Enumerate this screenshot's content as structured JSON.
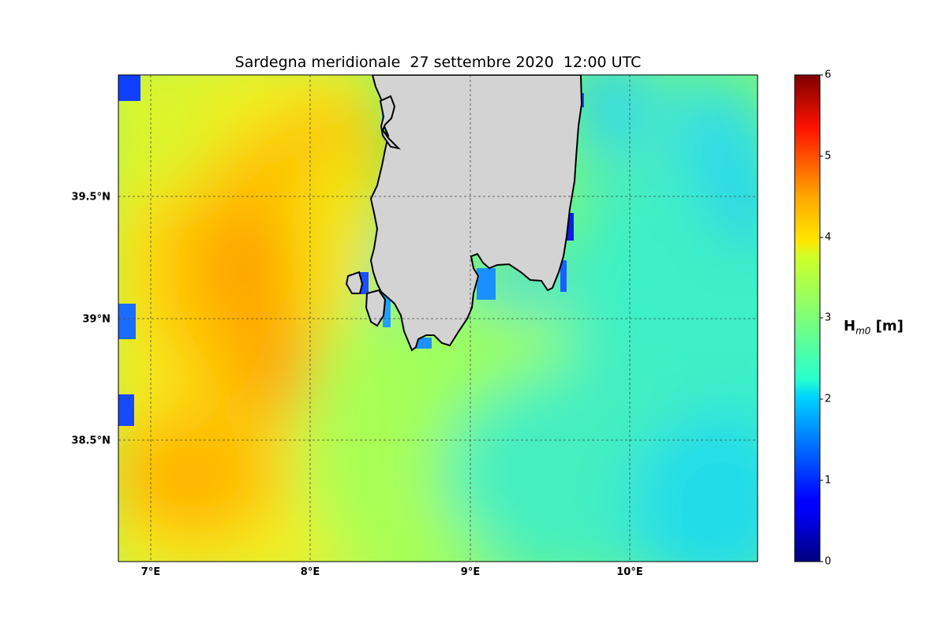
{
  "title": "Sardegna meridionale  27 settembre 2020  12:00 UTC",
  "map": {
    "x_ticks": [
      {
        "lon": 7,
        "label": "7°E"
      },
      {
        "lon": 8,
        "label": "8°E"
      },
      {
        "lon": 9,
        "label": "9°E"
      },
      {
        "lon": 10,
        "label": "10°E"
      }
    ],
    "y_ticks": [
      {
        "lat": 39.5,
        "label": "39.5°N"
      },
      {
        "lat": 39,
        "label": "39°N"
      },
      {
        "lat": 38.5,
        "label": "38.5°N"
      }
    ],
    "lon_range": [
      6.8,
      10.8
    ],
    "lat_range": [
      38.0,
      40.0
    ],
    "grid": true,
    "land_color": "#d3d3d3",
    "region_label": "Sardegna meridionale"
  },
  "colorbar": {
    "label_main": "H",
    "label_sub": "m0",
    "label_unit": " [m]",
    "ticks": [
      "0",
      "1",
      "2",
      "3",
      "4",
      "5",
      "6"
    ],
    "min": 0,
    "max": 6,
    "colormap": "jet"
  },
  "chart_data": {
    "type": "heatmap",
    "title": "Sardegna meridionale  27 settembre 2020  12:00 UTC",
    "variable": "Hm0 [m]",
    "xlim": [
      6.8,
      10.8
    ],
    "ylim": [
      38.0,
      40.0
    ],
    "vmin": 0,
    "vmax": 6,
    "field_samples": [
      {
        "lon": 7.6,
        "lat": 39.2,
        "value": 4.4
      },
      {
        "lon": 8.2,
        "lat": 39.7,
        "value": 4.4
      },
      {
        "lon": 7.8,
        "lat": 38.8,
        "value": 4.4
      },
      {
        "lon": 7.3,
        "lat": 38.3,
        "value": 4.1
      },
      {
        "lon": 7.0,
        "lat": 39.5,
        "value": 3.7
      },
      {
        "lon": 8.5,
        "lat": 38.7,
        "value": 3.4
      },
      {
        "lon": 9.3,
        "lat": 38.8,
        "value": 3.0
      },
      {
        "lon": 10.0,
        "lat": 39.5,
        "value": 2.8
      },
      {
        "lon": 10.5,
        "lat": 39.75,
        "value": 2.3
      },
      {
        "lon": 10.6,
        "lat": 38.2,
        "value": 2.2
      },
      {
        "lon": 9.8,
        "lat": 38.1,
        "value": 2.6
      }
    ]
  }
}
